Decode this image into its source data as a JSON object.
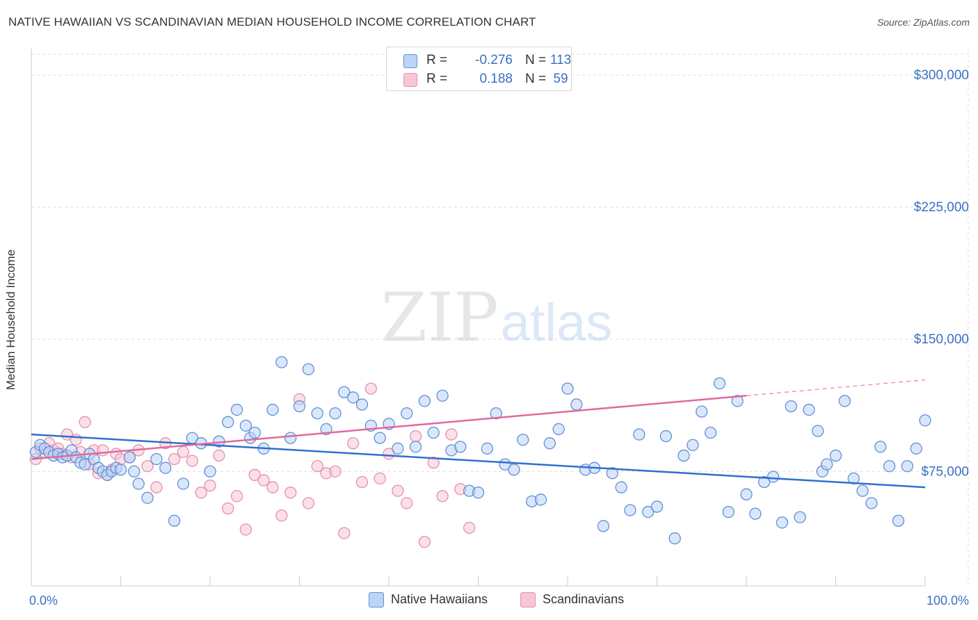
{
  "title": "NATIVE HAWAIIAN VS SCANDINAVIAN MEDIAN HOUSEHOLD INCOME CORRELATION CHART",
  "source": "Source: ZipAtlas.com",
  "watermark": {
    "zip": "ZIP",
    "atlas": "atlas"
  },
  "legend_top": [
    {
      "r_label": "R =",
      "r_value": "-0.276",
      "n_label": "N =",
      "n_value": "113"
    },
    {
      "r_label": "R =",
      "r_value": "0.188",
      "n_label": "N =",
      "n_value": "59"
    }
  ],
  "legend_bottom": [
    "Native Hawaiians",
    "Scandinavians"
  ],
  "colors": {
    "blue_fill": "#bcd4f5",
    "blue_stroke": "#5f8fd6",
    "blue_line": "#2f6fcf",
    "pink_fill": "#f7c6d6",
    "pink_stroke": "#e58fac",
    "pink_line": "#e0699a",
    "axis_text": "#3a6fc4",
    "grid": "#dddddd"
  },
  "chart_data": {
    "type": "scatter",
    "xlabel": "",
    "ylabel": "Median Household Income",
    "xlim": [
      0,
      100
    ],
    "ylim": [
      10000,
      315000
    ],
    "x_tick_labels": [
      "0.0%",
      "100.0%"
    ],
    "y_ticks": [
      75000,
      150000,
      225000,
      300000
    ],
    "y_tick_labels": [
      "$75,000",
      "$150,000",
      "$225,000",
      "$300,000"
    ],
    "grid": true,
    "series": [
      {
        "name": "Native Hawaiians",
        "r": -0.276,
        "n": 113,
        "trend": {
          "x": [
            0,
            100
          ],
          "y": [
            96000,
            66000
          ]
        },
        "points": [
          [
            0.5,
            86000
          ],
          [
            1,
            90000
          ],
          [
            1.5,
            88000
          ],
          [
            2,
            86000
          ],
          [
            2.5,
            84000
          ],
          [
            3,
            85000
          ],
          [
            3.5,
            83000
          ],
          [
            4,
            84000
          ],
          [
            4.5,
            87000
          ],
          [
            5,
            83000
          ],
          [
            5.5,
            80000
          ],
          [
            6,
            79000
          ],
          [
            6.5,
            85000
          ],
          [
            7,
            82000
          ],
          [
            7.5,
            77000
          ],
          [
            8,
            75000
          ],
          [
            8.5,
            73000
          ],
          [
            9,
            75000
          ],
          [
            9.5,
            77000
          ],
          [
            10,
            76000
          ],
          [
            11,
            83000
          ],
          [
            11.5,
            75000
          ],
          [
            12,
            68000
          ],
          [
            13,
            60000
          ],
          [
            14,
            82000
          ],
          [
            15,
            77000
          ],
          [
            16,
            47000
          ],
          [
            17,
            68000
          ],
          [
            18,
            94000
          ],
          [
            19,
            91000
          ],
          [
            20,
            75000
          ],
          [
            21,
            92000
          ],
          [
            22,
            103000
          ],
          [
            23,
            110000
          ],
          [
            24,
            101000
          ],
          [
            24.5,
            94000
          ],
          [
            25,
            97000
          ],
          [
            26,
            88000
          ],
          [
            27,
            110000
          ],
          [
            28,
            137000
          ],
          [
            29,
            94000
          ],
          [
            30,
            112000
          ],
          [
            31,
            133000
          ],
          [
            32,
            108000
          ],
          [
            33,
            99000
          ],
          [
            34,
            108000
          ],
          [
            35,
            120000
          ],
          [
            36,
            117000
          ],
          [
            37,
            113000
          ],
          [
            38,
            101000
          ],
          [
            39,
            94000
          ],
          [
            40,
            102000
          ],
          [
            41,
            88000
          ],
          [
            42,
            108000
          ],
          [
            43,
            89000
          ],
          [
            44,
            115000
          ],
          [
            45,
            97000
          ],
          [
            46,
            118000
          ],
          [
            47,
            87000
          ],
          [
            48,
            89000
          ],
          [
            49,
            64000
          ],
          [
            50,
            63000
          ],
          [
            51,
            88000
          ],
          [
            52,
            108000
          ],
          [
            53,
            79000
          ],
          [
            54,
            76000
          ],
          [
            55,
            93000
          ],
          [
            56,
            58000
          ],
          [
            57,
            59000
          ],
          [
            58,
            91000
          ],
          [
            59,
            99000
          ],
          [
            60,
            122000
          ],
          [
            61,
            113000
          ],
          [
            62,
            76000
          ],
          [
            63,
            77000
          ],
          [
            64,
            44000
          ],
          [
            65,
            74000
          ],
          [
            66,
            66000
          ],
          [
            67,
            53000
          ],
          [
            68,
            96000
          ],
          [
            69,
            52000
          ],
          [
            70,
            55000
          ],
          [
            71,
            95000
          ],
          [
            72,
            37000
          ],
          [
            73,
            84000
          ],
          [
            74,
            90000
          ],
          [
            75,
            109000
          ],
          [
            76,
            97000
          ],
          [
            77,
            125000
          ],
          [
            78,
            52000
          ],
          [
            79,
            115000
          ],
          [
            80,
            62000
          ],
          [
            81,
            51000
          ],
          [
            82,
            69000
          ],
          [
            83,
            72000
          ],
          [
            84,
            46000
          ],
          [
            85,
            112000
          ],
          [
            86,
            49000
          ],
          [
            87,
            110000
          ],
          [
            88,
            98000
          ],
          [
            88.5,
            75000
          ],
          [
            89,
            79000
          ],
          [
            90,
            84000
          ],
          [
            91,
            115000
          ],
          [
            92,
            71000
          ],
          [
            93,
            64000
          ],
          [
            94,
            57000
          ],
          [
            95,
            89000
          ],
          [
            96,
            78000
          ],
          [
            97,
            47000
          ],
          [
            98,
            78000
          ],
          [
            99,
            88000
          ],
          [
            100,
            104000
          ]
        ]
      },
      {
        "name": "Scandinavians",
        "r": 0.188,
        "n": 59,
        "trend": {
          "x": [
            0,
            80
          ],
          "y": [
            82000,
            118000
          ]
        },
        "trend_dashed": {
          "x": [
            80,
            100
          ],
          "y": [
            118000,
            127000
          ]
        },
        "points": [
          [
            0.5,
            82000
          ],
          [
            1,
            88000
          ],
          [
            1.5,
            86000
          ],
          [
            2,
            91000
          ],
          [
            2.5,
            87000
          ],
          [
            3,
            88000
          ],
          [
            3.5,
            85000
          ],
          [
            4,
            96000
          ],
          [
            4.5,
            83000
          ],
          [
            5,
            93000
          ],
          [
            5.5,
            86000
          ],
          [
            6,
            103000
          ],
          [
            6.5,
            79000
          ],
          [
            7,
            87000
          ],
          [
            7.5,
            74000
          ],
          [
            8,
            87000
          ],
          [
            8.5,
            73000
          ],
          [
            9,
            76000
          ],
          [
            9.5,
            85000
          ],
          [
            10,
            82000
          ],
          [
            11,
            83000
          ],
          [
            12,
            87000
          ],
          [
            13,
            78000
          ],
          [
            14,
            66000
          ],
          [
            15,
            91000
          ],
          [
            16,
            82000
          ],
          [
            17,
            86000
          ],
          [
            18,
            81000
          ],
          [
            19,
            63000
          ],
          [
            20,
            67000
          ],
          [
            21,
            84000
          ],
          [
            22,
            54000
          ],
          [
            23,
            61000
          ],
          [
            24,
            42000
          ],
          [
            25,
            73000
          ],
          [
            26,
            70000
          ],
          [
            27,
            66000
          ],
          [
            28,
            50000
          ],
          [
            29,
            63000
          ],
          [
            30,
            116000
          ],
          [
            31,
            57000
          ],
          [
            32,
            78000
          ],
          [
            33,
            74000
          ],
          [
            34,
            75000
          ],
          [
            35,
            40000
          ],
          [
            36,
            91000
          ],
          [
            37,
            69000
          ],
          [
            38,
            122000
          ],
          [
            39,
            71000
          ],
          [
            40,
            85000
          ],
          [
            41,
            64000
          ],
          [
            42,
            57000
          ],
          [
            43,
            95000
          ],
          [
            44,
            35000
          ],
          [
            45,
            80000
          ],
          [
            46,
            61000
          ],
          [
            47,
            96000
          ],
          [
            48,
            65000
          ],
          [
            49,
            43000
          ]
        ]
      }
    ]
  }
}
